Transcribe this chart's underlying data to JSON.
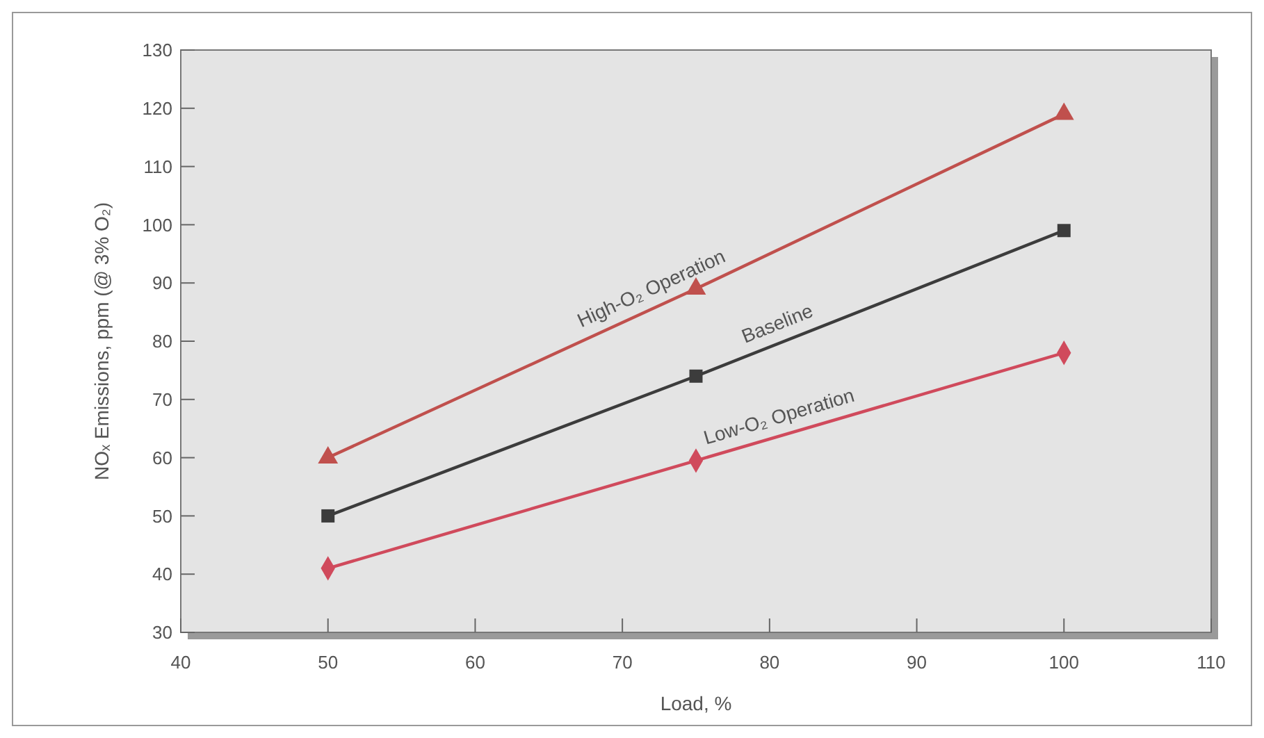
{
  "chart_data": {
    "type": "line",
    "xlabel": "Load, %",
    "ylabel": "NOₓ Emissions, ppm (@ 3% O₂)",
    "x": [
      50,
      75,
      100
    ],
    "series": [
      {
        "name": "High-O₂ Operation",
        "color": "#c0504d",
        "marker": "triangle",
        "values": [
          60,
          89,
          119
        ]
      },
      {
        "name": "Baseline",
        "color": "#3c3c3c",
        "marker": "square",
        "values": [
          50,
          74,
          99
        ]
      },
      {
        "name": "Low-O₂ Operation",
        "color": "#d04a5c",
        "marker": "diamond",
        "values": [
          41,
          59.5,
          78
        ]
      }
    ],
    "xlim": [
      40,
      110
    ],
    "xticks": [
      40,
      50,
      60,
      70,
      80,
      90,
      100,
      110
    ],
    "ylim": [
      30,
      130
    ],
    "yticks": [
      30,
      40,
      50,
      60,
      70,
      80,
      90,
      100,
      110,
      120,
      130
    ],
    "grid": false,
    "line_style": "solid"
  }
}
